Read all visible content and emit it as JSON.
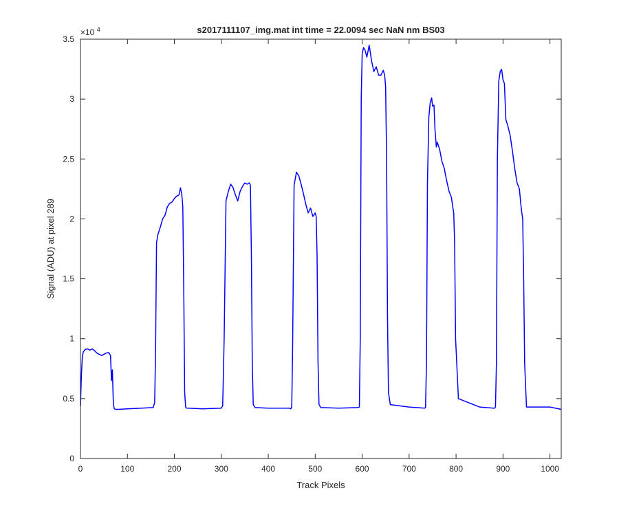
{
  "chart_data": {
    "type": "line",
    "title": "s2017111107_img.mat int time = 22.0094 sec  NaN nm BS03",
    "xlabel": "Track Pixels",
    "ylabel": "Signal (ADU) at pixel 289",
    "xlim": [
      0,
      1024
    ],
    "ylim": [
      0,
      35000
    ],
    "y_exponent_label": "×10",
    "y_exponent_power": "4",
    "xticks": [
      0,
      100,
      200,
      300,
      400,
      500,
      600,
      700,
      800,
      900,
      1000
    ],
    "xtick_labels": [
      "0",
      "100",
      "200",
      "300",
      "400",
      "500",
      "600",
      "700",
      "800",
      "900",
      "1000"
    ],
    "yticks": [
      0,
      5000,
      10000,
      15000,
      20000,
      25000,
      30000,
      35000
    ],
    "ytick_labels": [
      "0",
      "0.5",
      "1",
      "1.5",
      "2",
      "2.5",
      "3",
      "3.5"
    ],
    "grid": false,
    "line_color": "#0000ff",
    "axes_color": "#262626",
    "series": [
      {
        "x": [
          0,
          2,
          4,
          6,
          10,
          15,
          20,
          25,
          30,
          35,
          40,
          45,
          50,
          55,
          60,
          64,
          66,
          68,
          70,
          72,
          75,
          80,
          100,
          130,
          155,
          158,
          160,
          162,
          165,
          170,
          175,
          180,
          185,
          190,
          195,
          200,
          205,
          210,
          213,
          216,
          218,
          220,
          222,
          224,
          226,
          230,
          260,
          300,
          303,
          306,
          310,
          315,
          320,
          325,
          330,
          335,
          340,
          345,
          350,
          355,
          360,
          362,
          364,
          366,
          368,
          372,
          400,
          445,
          448,
          450,
          452,
          455,
          460,
          465,
          470,
          475,
          480,
          485,
          490,
          495,
          500,
          502,
          504,
          506,
          508,
          512,
          550,
          590,
          594,
          596,
          598,
          600,
          603,
          606,
          610,
          615,
          620,
          625,
          630,
          635,
          640,
          645,
          648,
          650,
          652,
          654,
          656,
          660,
          700,
          733,
          735,
          737,
          739,
          742,
          745,
          748,
          750,
          753,
          755,
          758,
          760,
          765,
          770,
          775,
          780,
          785,
          790,
          793,
          795,
          797,
          799,
          805,
          850,
          880,
          882,
          884,
          886,
          888,
          891,
          894,
          897,
          900,
          903,
          906,
          910,
          915,
          920,
          925,
          930,
          935,
          938,
          940,
          942,
          944,
          946,
          950,
          1000,
          1024
        ],
        "y": [
          4400,
          7000,
          8500,
          8900,
          9100,
          9150,
          9050,
          9150,
          9000,
          8800,
          8700,
          8600,
          8700,
          8800,
          8850,
          8600,
          6500,
          7400,
          4600,
          4150,
          4100,
          4100,
          4150,
          4200,
          4250,
          4700,
          9000,
          18000,
          18700,
          19300,
          20000,
          20300,
          21000,
          21300,
          21400,
          21700,
          21900,
          22000,
          22600,
          22000,
          21000,
          14000,
          5500,
          4300,
          4200,
          4200,
          4150,
          4200,
          4400,
          10000,
          21500,
          22300,
          22900,
          22600,
          22000,
          21500,
          22300,
          22700,
          23000,
          22900,
          23000,
          22800,
          17000,
          8000,
          4500,
          4250,
          4200,
          4200,
          4150,
          4300,
          9500,
          22800,
          23900,
          23600,
          22900,
          22100,
          21200,
          20500,
          20900,
          20200,
          20500,
          20200,
          17000,
          8000,
          4500,
          4250,
          4200,
          4250,
          4300,
          10000,
          30000,
          33800,
          34300,
          34100,
          33500,
          34500,
          33200,
          32300,
          32700,
          32000,
          32000,
          32400,
          32000,
          31000,
          25000,
          12000,
          5500,
          4500,
          4300,
          4200,
          4250,
          8000,
          23000,
          28500,
          29700,
          30100,
          29400,
          29500,
          27500,
          26000,
          26400,
          25800,
          24800,
          24200,
          23200,
          22300,
          21800,
          21000,
          20500,
          18000,
          10000,
          5000,
          4300,
          4200,
          4200,
          4300,
          8000,
          25000,
          31500,
          32300,
          32500,
          31600,
          31300,
          28300,
          27800,
          27000,
          25700,
          24200,
          23000,
          22500,
          21200,
          20500,
          20000,
          15000,
          8000,
          4300,
          4300,
          4100
        ]
      }
    ]
  }
}
